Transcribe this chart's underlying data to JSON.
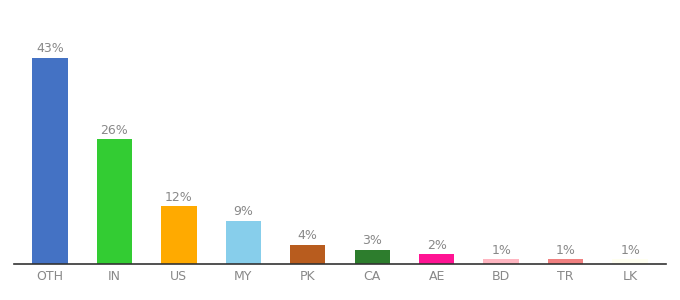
{
  "categories": [
    "OTH",
    "IN",
    "US",
    "MY",
    "PK",
    "CA",
    "AE",
    "BD",
    "TR",
    "LK"
  ],
  "values": [
    43,
    26,
    12,
    9,
    4,
    3,
    2,
    1,
    1,
    1
  ],
  "bar_colors": [
    "#4472c4",
    "#33cc33",
    "#ffaa00",
    "#87ceeb",
    "#b85c1e",
    "#2d7d2d",
    "#ff1493",
    "#ffb6c1",
    "#f08080",
    "#fffff0"
  ],
  "labels": [
    "43%",
    "26%",
    "12%",
    "9%",
    "4%",
    "3%",
    "2%",
    "1%",
    "1%",
    "1%"
  ],
  "ylim": [
    0,
    50
  ],
  "background_color": "#ffffff",
  "label_fontsize": 9,
  "tick_fontsize": 9,
  "bar_width": 0.55
}
